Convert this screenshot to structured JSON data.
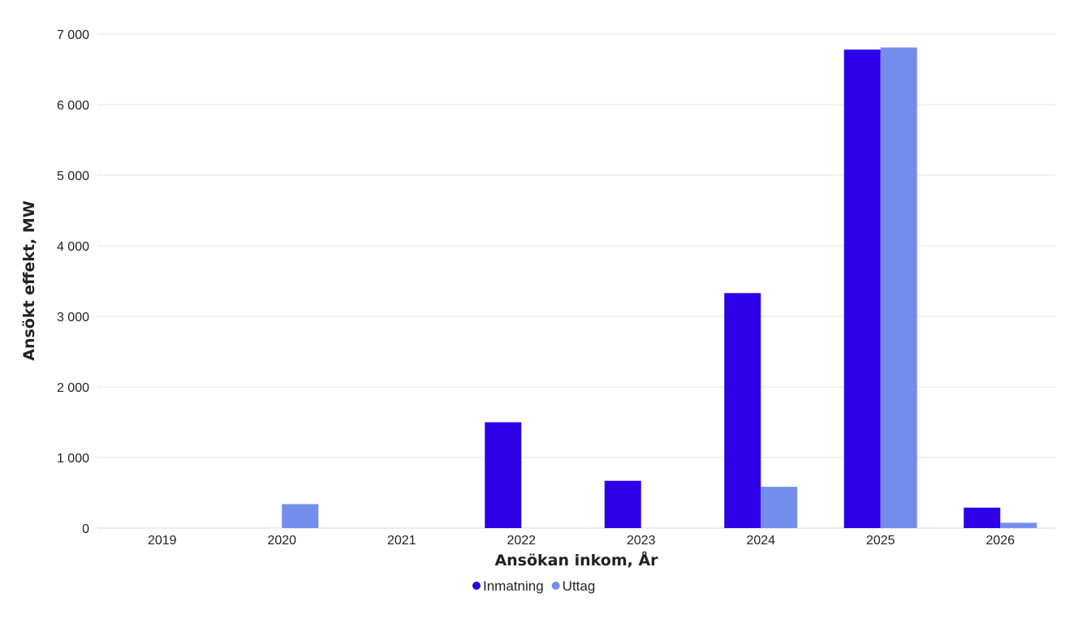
{
  "chart_data": {
    "type": "bar",
    "xlabel": "Ansökan inkom, År",
    "ylabel": "Ansökt effekt, MW",
    "ylim": [
      0,
      7000
    ],
    "yticks": [
      0,
      1000,
      2000,
      3000,
      4000,
      5000,
      6000,
      7000
    ],
    "ytick_labels": [
      "0",
      "1 000",
      "2 000",
      "3 000",
      "4 000",
      "5 000",
      "6 000",
      "7 000"
    ],
    "categories": [
      "2019",
      "2020",
      "2021",
      "2022",
      "2023",
      "2024",
      "2025",
      "2026"
    ],
    "series": [
      {
        "name": "Inmatning",
        "color": "#2e00e8",
        "values": [
          0,
          0,
          0,
          1500,
          670,
          3330,
          6780,
          290
        ]
      },
      {
        "name": "Uttag",
        "color": "#748ded",
        "values": [
          0,
          340,
          0,
          0,
          0,
          585,
          6810,
          75
        ]
      }
    ],
    "grid": true,
    "legend_position": "bottom-center"
  }
}
